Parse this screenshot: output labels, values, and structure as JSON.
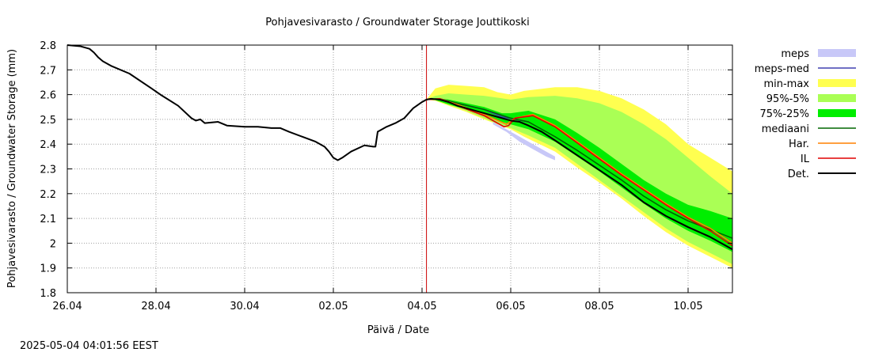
{
  "timestamp": "2025-05-04 04:01:56 EEST",
  "chart_data": {
    "type": "line",
    "title": "Pohjavesivarasto / Groundwater Storage   Jouttikoski",
    "xlabel": "Päivä / Date",
    "ylabel": "Pohjavesivarasto / Groundwater Storage (mm)",
    "xlim": [
      0,
      15
    ],
    "ylim": [
      1.8,
      2.8
    ],
    "grid": true,
    "legend_position": "right",
    "x_ticks": [
      {
        "x": 0,
        "label": "26.04"
      },
      {
        "x": 2,
        "label": "28.04"
      },
      {
        "x": 4,
        "label": "30.04"
      },
      {
        "x": 6,
        "label": "02.05"
      },
      {
        "x": 8,
        "label": "04.05"
      },
      {
        "x": 10,
        "label": "06.05"
      },
      {
        "x": 12,
        "label": "08.05"
      },
      {
        "x": 14,
        "label": "10.05"
      }
    ],
    "y_ticks": [
      {
        "y": 1.8,
        "label": "1.8"
      },
      {
        "y": 1.9,
        "label": "1.9"
      },
      {
        "y": 2.0,
        "label": "2"
      },
      {
        "y": 2.1,
        "label": "2.1"
      },
      {
        "y": 2.2,
        "label": "2.2"
      },
      {
        "y": 2.3,
        "label": "2.3"
      },
      {
        "y": 2.4,
        "label": "2.4"
      },
      {
        "y": 2.5,
        "label": "2.5"
      },
      {
        "y": 2.6,
        "label": "2.6"
      },
      {
        "y": 2.7,
        "label": "2.7"
      },
      {
        "y": 2.8,
        "label": "2.8"
      }
    ],
    "forecast_start_x": 8.1,
    "legend": [
      {
        "name": "meps",
        "color": "#c8c8f8",
        "kind": "band"
      },
      {
        "name": "meps-med",
        "color": "#4040b0",
        "kind": "line"
      },
      {
        "name": "min-max",
        "color": "#ffff50",
        "kind": "band"
      },
      {
        "name": "95%-5%",
        "color": "#aaff55",
        "kind": "band"
      },
      {
        "name": "75%-25%",
        "color": "#00ee00",
        "kind": "band"
      },
      {
        "name": "mediaani",
        "color": "#006600",
        "kind": "line"
      },
      {
        "name": "Har.",
        "color": "#ff8000",
        "kind": "line"
      },
      {
        "name": "IL",
        "color": "#e00000",
        "kind": "line"
      },
      {
        "name": "Det.",
        "color": "#000000",
        "kind": "line"
      }
    ],
    "series": [
      {
        "name": "Det.",
        "x": [
          0,
          0.3,
          0.5,
          0.6,
          0.7,
          0.8,
          1.0,
          1.4,
          1.9,
          2.1,
          2.5,
          2.8,
          2.9,
          3.0,
          3.1,
          3.4,
          3.6,
          4.0,
          4.3,
          4.6,
          4.8,
          5.0,
          5.3,
          5.6,
          5.8,
          5.9,
          6.0,
          6.1,
          6.2,
          6.4,
          6.7,
          6.9,
          6.95,
          7.0,
          7.2,
          7.4,
          7.6,
          7.8,
          8.0,
          8.1,
          8.2,
          8.4,
          8.6,
          8.8,
          9.0,
          9.4,
          9.8,
          10.0,
          10.2,
          10.4,
          10.7,
          11.0,
          11.5,
          12.0,
          12.5,
          13.0,
          13.5,
          14.0,
          14.5,
          15.0
        ],
        "values": [
          2.8,
          2.795,
          2.785,
          2.77,
          2.75,
          2.735,
          2.715,
          2.685,
          2.625,
          2.6,
          2.555,
          2.505,
          2.495,
          2.5,
          2.485,
          2.49,
          2.475,
          2.47,
          2.47,
          2.465,
          2.465,
          2.45,
          2.43,
          2.41,
          2.39,
          2.37,
          2.345,
          2.335,
          2.345,
          2.37,
          2.395,
          2.39,
          2.39,
          2.45,
          2.47,
          2.485,
          2.505,
          2.545,
          2.57,
          2.58,
          2.583,
          2.58,
          2.57,
          2.555,
          2.545,
          2.525,
          2.505,
          2.495,
          2.49,
          2.475,
          2.45,
          2.415,
          2.355,
          2.295,
          2.235,
          2.165,
          2.11,
          2.065,
          2.025,
          1.975
        ]
      },
      {
        "name": "mediaani",
        "x": [
          8.1,
          8.4,
          8.8,
          9.4,
          10.0,
          10.4,
          11.0,
          11.5,
          12.0,
          12.5,
          13.0,
          13.5,
          14.0,
          14.5,
          15.0
        ],
        "values": [
          2.58,
          2.583,
          2.565,
          2.54,
          2.505,
          2.49,
          2.43,
          2.375,
          2.315,
          2.255,
          2.19,
          2.135,
          2.09,
          2.055,
          2.02
        ]
      },
      {
        "name": "Har.",
        "x": [
          8.1,
          8.4,
          8.8,
          9.4,
          9.9,
          10.1,
          10.5,
          11.0,
          11.5,
          12.0,
          12.5,
          13.0,
          13.5,
          14.0,
          14.5,
          15.0
        ],
        "values": [
          2.58,
          2.583,
          2.56,
          2.52,
          2.48,
          2.505,
          2.52,
          2.475,
          2.41,
          2.345,
          2.28,
          2.22,
          2.16,
          2.105,
          2.06,
          2.0
        ]
      },
      {
        "name": "IL",
        "x": [
          8.1,
          8.4,
          8.8,
          9.4,
          9.85,
          9.95,
          10.1,
          10.5,
          11.0,
          11.5,
          12.0,
          12.5,
          13.0,
          13.5,
          14.0,
          14.5,
          15.0
        ],
        "values": [
          2.58,
          2.583,
          2.555,
          2.515,
          2.47,
          2.475,
          2.505,
          2.515,
          2.47,
          2.405,
          2.34,
          2.275,
          2.215,
          2.155,
          2.1,
          2.05,
          1.99
        ]
      },
      {
        "name": "meps-med",
        "x": [
          8.1,
          8.4,
          8.8,
          9.4,
          9.8,
          10.1,
          10.4
        ],
        "values": [
          2.58,
          2.583,
          2.565,
          2.54,
          2.51,
          2.5,
          2.49
        ]
      }
    ],
    "bands": [
      {
        "name": "min-max",
        "x": [
          8.1,
          8.3,
          8.6,
          9.0,
          9.4,
          9.7,
          10.0,
          10.3,
          11.0,
          11.5,
          12.0,
          12.5,
          13.0,
          13.5,
          14.0,
          14.5,
          15.0
        ],
        "upper": [
          2.58,
          2.625,
          2.64,
          2.635,
          2.63,
          2.61,
          2.6,
          2.615,
          2.63,
          2.63,
          2.615,
          2.585,
          2.54,
          2.48,
          2.4,
          2.345,
          2.29
        ],
        "lower": [
          2.58,
          2.575,
          2.555,
          2.53,
          2.5,
          2.48,
          2.46,
          2.43,
          2.37,
          2.305,
          2.245,
          2.18,
          2.11,
          2.045,
          1.99,
          1.945,
          1.9
        ]
      },
      {
        "name": "95%-5%",
        "x": [
          8.1,
          8.3,
          8.6,
          9.0,
          9.4,
          9.8,
          10.0,
          10.4,
          11.0,
          11.5,
          12.0,
          12.5,
          13.0,
          13.5,
          14.0,
          14.5,
          15.0
        ],
        "upper": [
          2.58,
          2.595,
          2.605,
          2.6,
          2.595,
          2.585,
          2.58,
          2.59,
          2.595,
          2.585,
          2.565,
          2.53,
          2.48,
          2.42,
          2.345,
          2.27,
          2.2
        ],
        "lower": [
          2.58,
          2.578,
          2.56,
          2.535,
          2.505,
          2.475,
          2.465,
          2.435,
          2.385,
          2.32,
          2.255,
          2.19,
          2.125,
          2.06,
          2.005,
          1.96,
          1.915
        ]
      },
      {
        "name": "75%-25%",
        "x": [
          8.1,
          8.3,
          8.6,
          9.0,
          9.4,
          9.8,
          10.0,
          10.4,
          11.0,
          11.5,
          12.0,
          12.5,
          13.0,
          13.5,
          14.0,
          14.5,
          15.0
        ],
        "upper": [
          2.58,
          2.585,
          2.58,
          2.565,
          2.55,
          2.525,
          2.525,
          2.535,
          2.5,
          2.445,
          2.385,
          2.32,
          2.255,
          2.2,
          2.155,
          2.13,
          2.1
        ],
        "lower": [
          2.58,
          2.578,
          2.56,
          2.54,
          2.515,
          2.49,
          2.48,
          2.46,
          2.41,
          2.35,
          2.29,
          2.225,
          2.16,
          2.1,
          2.05,
          2.01,
          1.965
        ]
      },
      {
        "name": "meps",
        "x": [
          9.6,
          9.9,
          10.2,
          10.5,
          10.8,
          11.0
        ],
        "upper": [
          2.49,
          2.46,
          2.43,
          2.4,
          2.37,
          2.35
        ],
        "lower": [
          2.48,
          2.45,
          2.41,
          2.38,
          2.35,
          2.335
        ]
      }
    ]
  }
}
